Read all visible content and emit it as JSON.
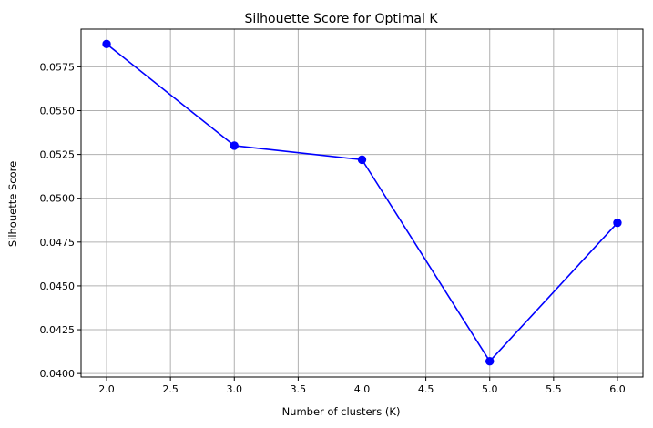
{
  "chart_data": {
    "type": "line",
    "title": "Silhouette Score for Optimal K",
    "xlabel": "Number of clusters (K)",
    "ylabel": "Silhouette Score",
    "x": [
      2,
      3,
      4,
      5,
      6
    ],
    "series": [
      {
        "values": [
          0.0588,
          0.053,
          0.0522,
          0.0407,
          0.0486
        ],
        "color": "#0000ff",
        "marker": "circle"
      }
    ],
    "xlim": [
      1.8,
      6.2
    ],
    "ylim": [
      0.0398,
      0.05965
    ],
    "x_ticks": [
      "2.0",
      "2.5",
      "3.0",
      "3.5",
      "4.0",
      "4.5",
      "5.0",
      "5.5",
      "6.0"
    ],
    "y_ticks": [
      "0.0400",
      "0.0425",
      "0.0450",
      "0.0475",
      "0.0500",
      "0.0525",
      "0.0550",
      "0.0575"
    ],
    "grid": true
  }
}
